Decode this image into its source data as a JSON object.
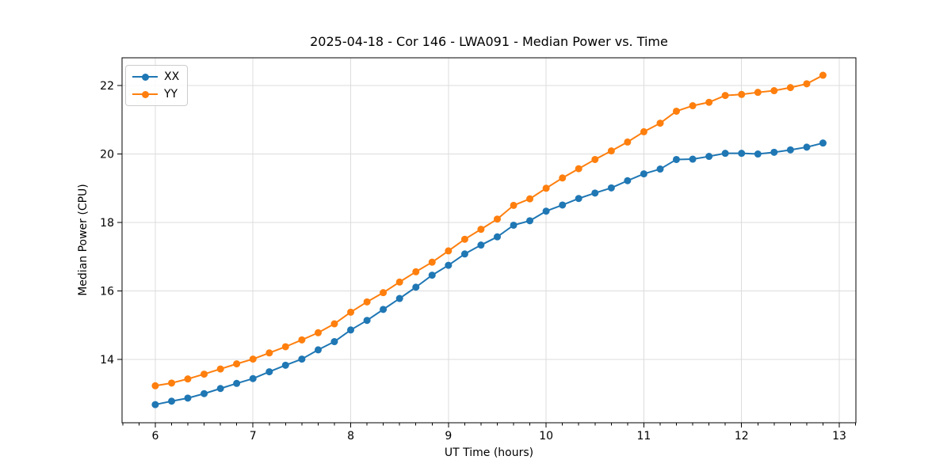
{
  "chart_data": {
    "type": "line",
    "title": "2025-04-18 - Cor 146 - LWA091 - Median Power vs. Time",
    "xlabel": "UT Time (hours)",
    "ylabel": "Median Power (CPU)",
    "x": [
      6.0,
      6.167,
      6.333,
      6.5,
      6.667,
      6.833,
      7.0,
      7.167,
      7.333,
      7.5,
      7.667,
      7.833,
      8.0,
      8.167,
      8.333,
      8.5,
      8.667,
      8.833,
      9.0,
      9.167,
      9.333,
      9.5,
      9.667,
      9.833,
      10.0,
      10.167,
      10.333,
      10.5,
      10.667,
      10.833,
      11.0,
      11.167,
      11.333,
      11.5,
      11.667,
      11.833,
      12.0,
      12.167,
      12.333,
      12.5,
      12.667,
      12.833
    ],
    "series": [
      {
        "name": "XX",
        "color": "#1f77b4",
        "values": [
          12.68,
          12.78,
          12.87,
          13.0,
          13.15,
          13.3,
          13.44,
          13.64,
          13.83,
          14.01,
          14.28,
          14.52,
          14.86,
          15.14,
          15.46,
          15.78,
          16.11,
          16.46,
          16.75,
          17.08,
          17.34,
          17.58,
          17.92,
          18.05,
          18.33,
          18.51,
          18.7,
          18.86,
          19.01,
          19.22,
          19.42,
          19.56,
          19.84,
          19.85,
          19.93,
          20.02,
          20.02,
          20.0,
          20.05,
          20.12,
          20.2,
          20.32
        ]
      },
      {
        "name": "YY",
        "color": "#ff7f0e",
        "values": [
          13.23,
          13.31,
          13.43,
          13.57,
          13.72,
          13.87,
          14.01,
          14.19,
          14.37,
          14.57,
          14.78,
          15.04,
          15.38,
          15.68,
          15.95,
          16.26,
          16.56,
          16.84,
          17.17,
          17.51,
          17.8,
          18.1,
          18.5,
          18.69,
          19.0,
          19.3,
          19.57,
          19.84,
          20.09,
          20.35,
          20.65,
          20.9,
          21.25,
          21.41,
          21.51,
          21.71,
          21.74,
          21.8,
          21.85,
          21.94,
          22.05,
          22.3
        ]
      }
    ],
    "xlim": [
      5.66,
      13.17
    ],
    "ylim": [
      12.15,
      22.81
    ],
    "xticks": [
      6,
      7,
      8,
      9,
      10,
      11,
      12,
      13
    ],
    "yticks": [
      14,
      16,
      18,
      20,
      22
    ],
    "x_minor_step": 0.1666667,
    "grid": true,
    "grid_color": "#dcdcdc",
    "legend_position": "upper-left",
    "marker": "circle"
  }
}
